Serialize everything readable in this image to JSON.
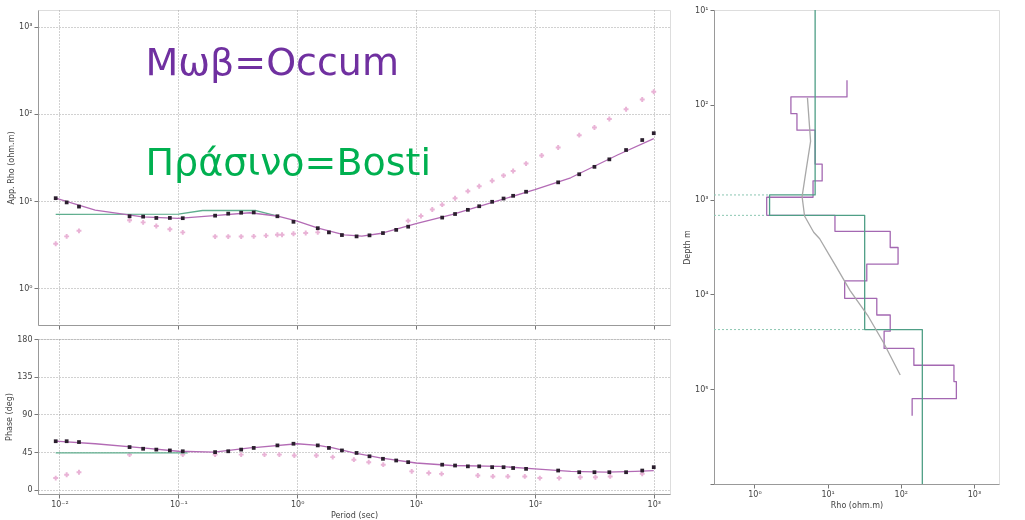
{
  "chart_data": [
    {
      "type": "line",
      "ylabel": "App. Rho (ohm.m)",
      "log": "xy",
      "grid": true,
      "tick_labels": "y",
      "xlim": [
        0.0066,
        1370
      ],
      "ylim": [
        0.38,
        1550
      ],
      "xticks": [
        0.01,
        0.1,
        1,
        10,
        100,
        1000
      ],
      "yticks": [
        {
          "value": 1,
          "label": "10⁰"
        },
        {
          "value": 10,
          "label": "10¹"
        },
        {
          "value": 100,
          "label": "10²"
        },
        {
          "value": 1000,
          "label": "10³"
        }
      ],
      "annotations": [
        "Μωβ=Occum",
        "Πράσινο=Bosti"
      ],
      "series": [
        {
          "type": "scatter",
          "marker": "cross",
          "color": "#e9b3d6",
          "x": [
            0.0093,
            0.0115,
            0.0146,
            0.0389,
            0.0506,
            0.0653,
            0.0849,
            0.109,
            0.204,
            0.263,
            0.338,
            0.431,
            0.547,
            0.682,
            0.746,
            0.931,
            1.18,
            1.49,
            8.59,
            11.0,
            13.7,
            16.6,
            21.3,
            27.3,
            34.0,
            43.7,
            54.5,
            65.6,
            84.3,
            114,
            157,
            236,
            317,
            423,
            585,
            800,
            1000
          ],
          "values": [
            3.24,
            3.94,
            4.56,
            6.04,
            5.7,
            5.19,
            4.76,
            4.38,
            3.92,
            3.92,
            3.92,
            3.94,
            4.02,
            4.12,
            4.12,
            4.23,
            4.3,
            4.38,
            5.94,
            6.76,
            8.02,
            9.1,
            10.8,
            13.0,
            14.8,
            17.1,
            19.6,
            22.1,
            26.9,
            33.3,
            41.2,
            57.0,
            69.8,
            87.3,
            113,
            146,
            179
          ]
        },
        {
          "marker": "none",
          "color": "#5fae8e",
          "x": [
            0.0093,
            0.1,
            0.16,
            0.45,
            0.7
          ],
          "values": [
            7.05,
            7.1,
            7.8,
            7.8,
            6.7
          ]
        },
        {
          "marker": "none",
          "color": "#b36bb5",
          "x": [
            0.0093,
            0.02,
            0.05,
            0.1,
            0.2,
            0.4,
            0.7,
            1,
            1.5,
            2.5,
            3.5,
            5,
            10,
            20,
            50,
            100,
            200,
            500,
            1000
          ],
          "values": [
            10.8,
            7.9,
            6.6,
            6.35,
            6.8,
            7.35,
            6.7,
            5.9,
            4.9,
            4.1,
            3.97,
            4.25,
            5.5,
            7.0,
            10.2,
            13.5,
            18.5,
            34,
            52
          ]
        },
        {
          "type": "scatter",
          "marker": "square",
          "color": "#2b1f2e",
          "x": [
            0.0093,
            0.0115,
            0.0146,
            0.0389,
            0.0506,
            0.0653,
            0.0849,
            0.109,
            0.204,
            0.263,
            0.338,
            0.431,
            0.682,
            0.931,
            1.49,
            1.85,
            2.38,
            3.16,
            4.06,
            5.27,
            6.81,
            8.59,
            16.6,
            21.3,
            27.3,
            34.0,
            43.7,
            54.5,
            65.6,
            84.3,
            157,
            236,
            317,
            423,
            585,
            800,
            1000
          ],
          "values": [
            10.8,
            9.66,
            8.65,
            6.7,
            6.64,
            6.41,
            6.41,
            6.37,
            6.81,
            7.18,
            7.36,
            7.41,
            6.7,
            5.79,
            4.89,
            4.38,
            4.08,
            3.94,
            4.05,
            4.3,
            4.68,
            5.09,
            6.47,
            7.11,
            7.94,
            8.73,
            9.82,
            10.7,
            11.5,
            12.8,
            16.4,
            20.3,
            24.7,
            30.1,
            38.5,
            50.1,
            60.0
          ]
        }
      ]
    },
    {
      "type": "line",
      "xlabel": "Period (sec)",
      "ylabel": "Phase (deg)",
      "log": "x",
      "grid": true,
      "xlim": [
        0.0066,
        1370
      ],
      "ylim": [
        -5,
        180
      ],
      "xticks": [
        {
          "value": 0.01,
          "label": "10⁻²"
        },
        {
          "value": 0.1,
          "label": "10⁻¹"
        },
        {
          "value": 1,
          "label": "10⁰"
        },
        {
          "value": 10,
          "label": "10¹"
        },
        {
          "value": 100,
          "label": "10²"
        },
        {
          "value": 1000,
          "label": "10³"
        }
      ],
      "yticks": [
        0,
        45,
        90,
        135,
        180
      ],
      "series": [
        {
          "type": "scatter",
          "marker": "cross",
          "color": "#e9b3d6",
          "x": [
            0.0093,
            0.0115,
            0.0146,
            0.0389,
            0.109,
            0.204,
            0.338,
            0.531,
            0.708,
            0.946,
            1.45,
            1.99,
            3.0,
            4.0,
            5.3,
            9.2,
            12.8,
            16.4,
            33.1,
            44.3,
            59.2,
            82.2,
            110,
            160,
            241,
            323,
            430,
            800
          ],
          "values": [
            14,
            18,
            21,
            42,
            42,
            42,
            42,
            42,
            42,
            41,
            41,
            39,
            36,
            33,
            30,
            22,
            20,
            19,
            17,
            16,
            16,
            16,
            14,
            14,
            15,
            15,
            16,
            19
          ]
        },
        {
          "marker": "none",
          "color": "#5fae8e",
          "x": [
            0.0093,
            0.12
          ],
          "values": [
            44,
            44
          ]
        },
        {
          "marker": "none",
          "color": "#b36bb5",
          "x": [
            0.0093,
            0.02,
            0.05,
            0.1,
            0.2,
            0.4,
            1,
            1.5,
            2,
            3,
            5,
            10,
            20,
            50,
            100,
            200,
            400,
            700,
            1000
          ],
          "values": [
            58,
            55,
            50,
            46,
            45,
            50,
            55,
            53,
            50,
            44,
            38,
            32,
            29,
            28,
            25,
            22,
            21,
            22,
            23
          ]
        },
        {
          "type": "scatter",
          "marker": "square",
          "color": "#2b1f2e",
          "x": [
            0.0093,
            0.0115,
            0.0146,
            0.0389,
            0.0506,
            0.0653,
            0.0849,
            0.109,
            0.204,
            0.263,
            0.338,
            0.431,
            0.682,
            0.931,
            1.49,
            1.85,
            2.38,
            3.16,
            4.06,
            5.27,
            6.81,
            8.59,
            16.6,
            21.3,
            27.3,
            34.0,
            43.7,
            54.5,
            65.6,
            84.3,
            157,
            236,
            317,
            423,
            585,
            800,
            1000
          ],
          "values": [
            58,
            58,
            57,
            51,
            49,
            48,
            47,
            46,
            45,
            46,
            48,
            50,
            53,
            55,
            53,
            50,
            47,
            44,
            40,
            37,
            35,
            33,
            30,
            29,
            28,
            28,
            27,
            27,
            26,
            25,
            23,
            21,
            21,
            21,
            21,
            23,
            27
          ]
        }
      ]
    },
    {
      "type": "line",
      "xlabel": "Rho (ohm.m)",
      "ylabel": "Depth m",
      "log": "xy",
      "xlim": [
        0.28,
        2200
      ],
      "ylim": [
        1000000,
        10
      ],
      "xticks": [
        {
          "value": 1,
          "label": "10⁰"
        },
        {
          "value": 10,
          "label": "10¹"
        },
        {
          "value": 100,
          "label": "10²"
        },
        {
          "value": 1000,
          "label": "10³"
        }
      ],
      "yticks": [
        {
          "value": 10,
          "label": "10¹"
        },
        {
          "value": 100,
          "label": "10²"
        },
        {
          "value": 1000,
          "label": "10³"
        },
        {
          "value": 10000,
          "label": "10⁴"
        },
        {
          "value": 100000,
          "label": "10⁵"
        },
        {
          "value": 1000000,
          "label": null
        }
      ],
      "ref_lines": [
        {
          "axis": "y",
          "value": 893,
          "color": "#8cc7b2",
          "line_style": "dotted"
        },
        {
          "axis": "y",
          "value": 1466,
          "color": "#8cc7b2",
          "line_style": "dotted"
        },
        {
          "axis": "y",
          "value": 23500,
          "color": "#8cc7b2",
          "line_style": "dotted"
        }
      ],
      "series": [
        {
          "marker": "none",
          "color": "#a468b2",
          "x": [
            18.4,
            18.4,
            3.15,
            3.15,
            3.81,
            3.81,
            6.75,
            6.75,
            8.42,
            8.42,
            6.32,
            6.32,
            1.47,
            1.47,
            12.6,
            12.6,
            71.7,
            71.7,
            91.8,
            91.8,
            34.3,
            34.3,
            17.1,
            17.1,
            47.0,
            47.0,
            71.7,
            71.7,
            59.2,
            59.2,
            151,
            151,
            533,
            533,
            575,
            575,
            143,
            143
          ],
          "values": [
            55,
            82.6,
            82.6,
            124,
            124,
            185,
            185,
            422,
            422,
            636,
            636,
            944,
            944,
            1466,
            1466,
            2160,
            2160,
            3200,
            3200,
            4790,
            4790,
            7200,
            7200,
            11000,
            11000,
            16500,
            16500,
            24400,
            24400,
            37100,
            37100,
            55900,
            55900,
            83000,
            83000,
            126000,
            126000,
            190000
          ]
        },
        {
          "marker": "none",
          "color": "#4f9f86",
          "x": [
            6.75,
            6.75,
            1.61,
            1.61,
            32.1,
            32.1,
            197,
            197
          ],
          "values": [
            10,
            893,
            893,
            1466,
            1466,
            23500,
            23500,
            1000000
          ]
        },
        {
          "marker": "none",
          "color": "#a8a8a8",
          "x": [
            5.3,
            5.85,
            5.07,
            4.48,
            4.84,
            6.45,
            7.79,
            12.6,
            20.3,
            36.0,
            58.0,
            98.2
          ],
          "values": [
            84,
            243,
            494,
            929,
            1490,
            2210,
            2590,
            4860,
            9120,
            17100,
            32200,
            70800
          ]
        }
      ]
    }
  ]
}
